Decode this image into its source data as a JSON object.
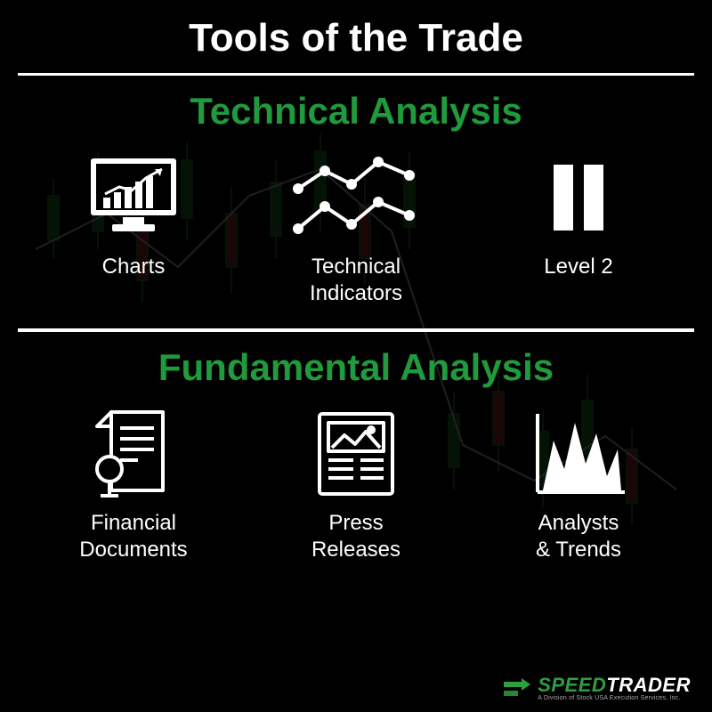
{
  "colors": {
    "background": "#000000",
    "title_text": "#ffffff",
    "section_title": "#1f9a3d",
    "icon_stroke": "#ffffff",
    "label_text": "#ffffff",
    "divider": "#ffffff",
    "logo_accent": "#2e9e3f"
  },
  "typography": {
    "main_title_fontsize": 44,
    "section_title_fontsize": 42,
    "label_fontsize": 24,
    "logo_fontsize": 22
  },
  "main_title": "Tools of the Trade",
  "sections": [
    {
      "title": "Technical Analysis",
      "title_color": "#1f9a3d",
      "items": [
        {
          "icon": "charts-icon",
          "label": "Charts"
        },
        {
          "icon": "technical-indicators-icon",
          "label": "Technical\nIndicators"
        },
        {
          "icon": "level2-icon",
          "label": "Level 2"
        }
      ]
    },
    {
      "title": "Fundamental Analysis",
      "title_color": "#1f9a3d",
      "items": [
        {
          "icon": "financial-documents-icon",
          "label": "Financial\nDocuments"
        },
        {
          "icon": "press-releases-icon",
          "label": "Press\nReleases"
        },
        {
          "icon": "analysts-trends-icon",
          "label": "Analysts\n& Trends"
        }
      ]
    }
  ],
  "logo": {
    "brand_part1": "SPEED",
    "brand_part2": "TRADER",
    "subtitle": "A Division of Stock USA Execution Services, Inc."
  }
}
